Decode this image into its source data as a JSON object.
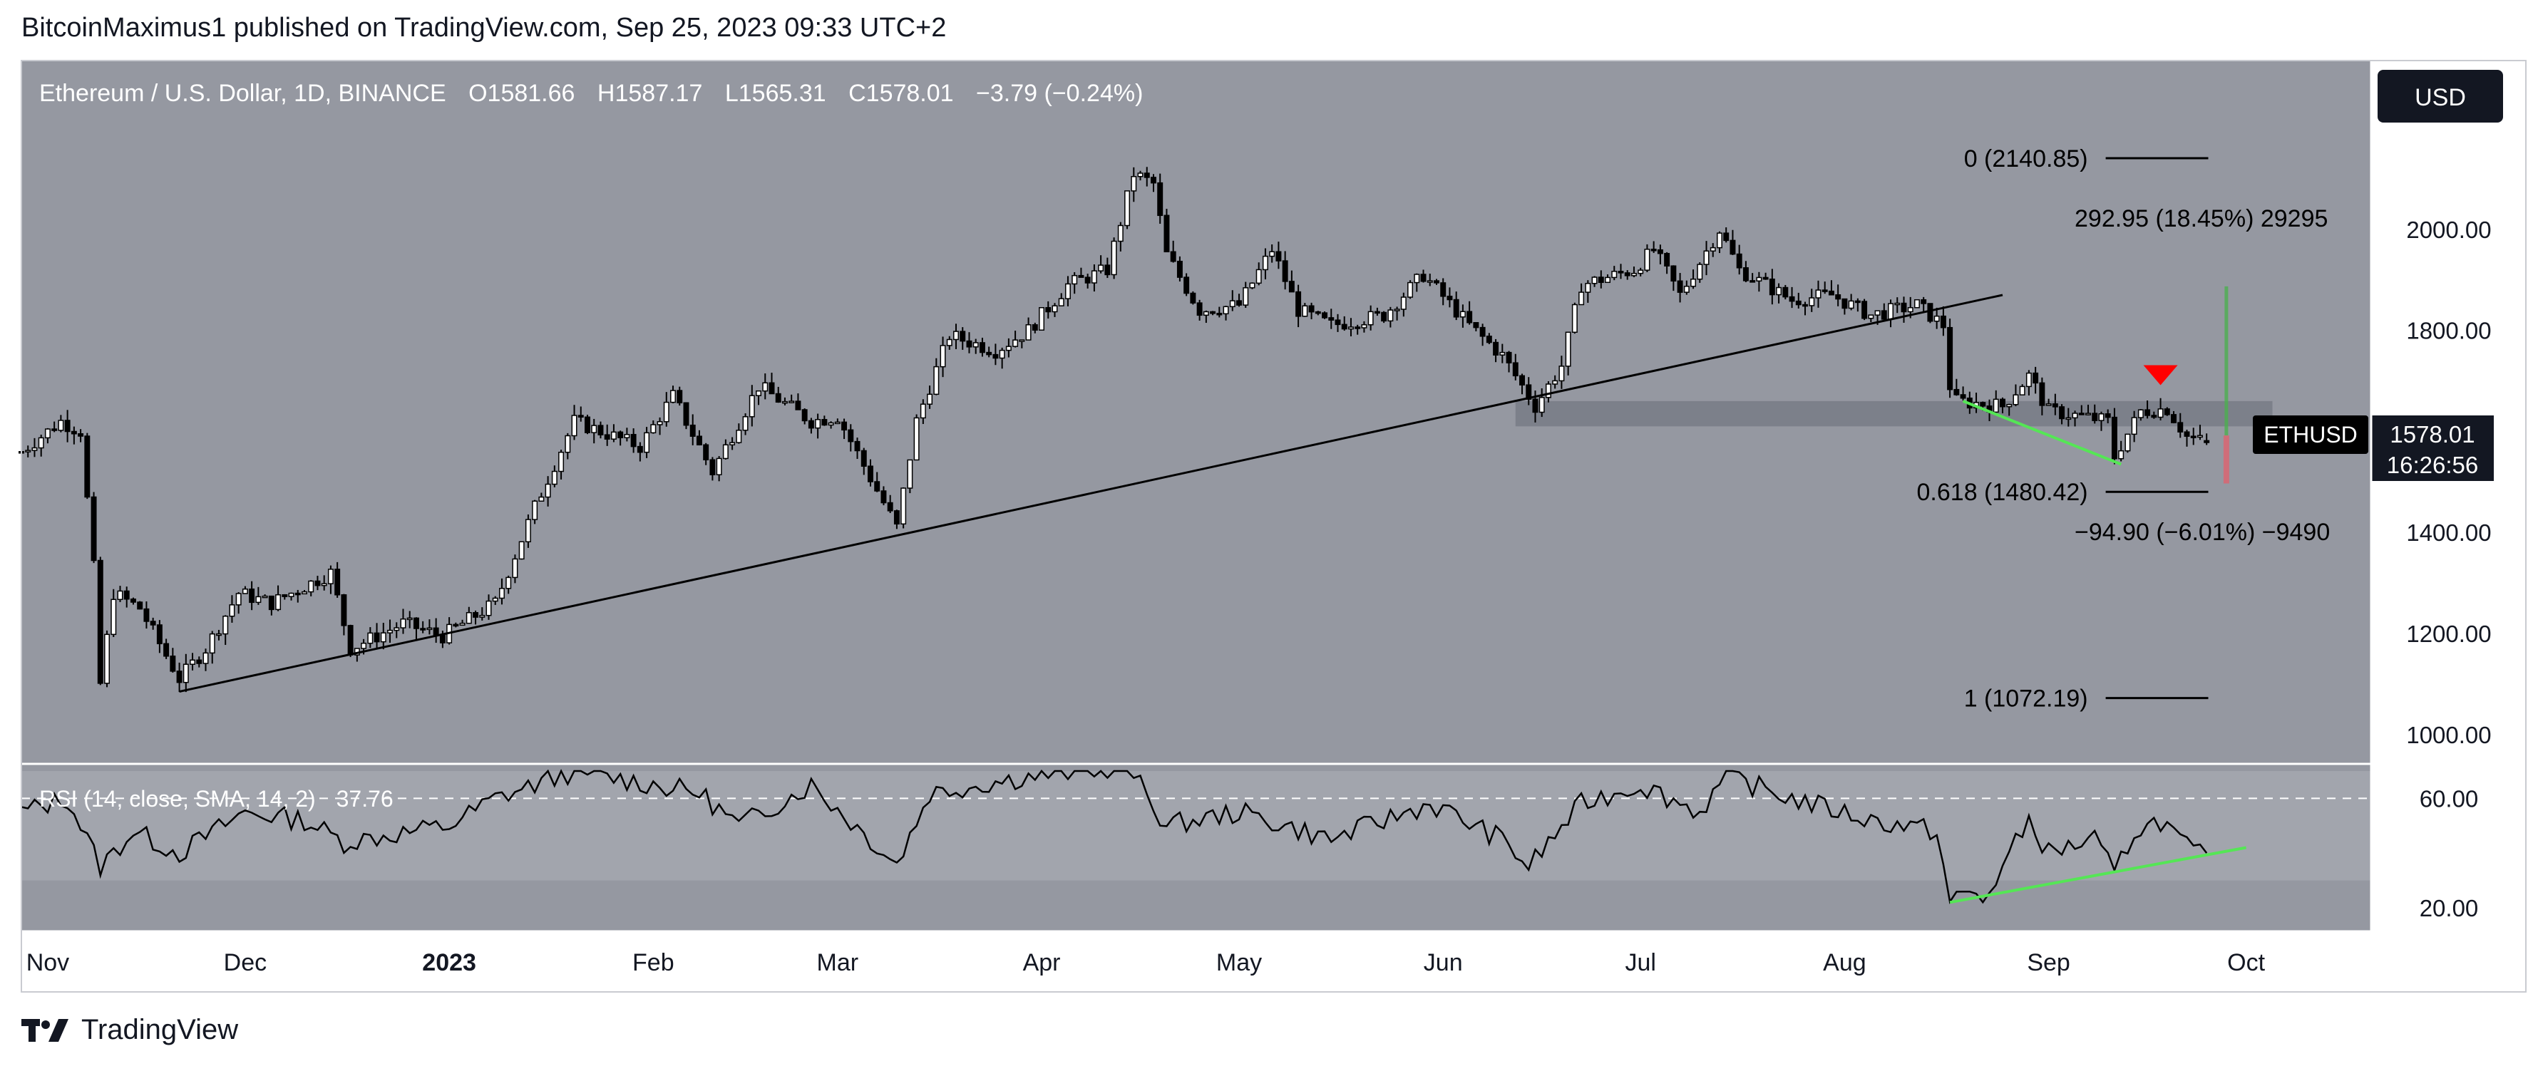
{
  "publisher_text": "BitcoinMaximus1 published on TradingView.com, Sep 25, 2023 09:33 UTC+2",
  "brand": {
    "name": "TradingView",
    "logo_icon": "tradingview-logo-icon"
  },
  "colors": {
    "pane_bg": "#9598a1",
    "candle_up": "#ffffff",
    "candle_down": "#000000",
    "trendline": "#000000",
    "green_line": "#55e655",
    "support_zone": "#787b86",
    "red_marker": "#ff0000",
    "rsi_line": "#000000",
    "price_tag_bg": "#000000"
  },
  "chart_data": {
    "type": "candlestick",
    "title": "Ethereum / U.S. Dollar, 1D, BINANCE",
    "ohlc": {
      "o_label": "O",
      "o": "1581.66",
      "h_label": "H",
      "h": "1587.17",
      "l_label": "L",
      "l": "1565.31",
      "c_label": "C",
      "c": "1578.01",
      "change": "−3.79 (−0.24%)"
    },
    "currency_button": "USD",
    "symbol_tag": "ETHUSD",
    "last_price": "1578.01",
    "countdown": "16:26:56",
    "y_ticks": [
      "2000.00",
      "1800.00",
      "1400.00",
      "1200.00",
      "1000.00"
    ],
    "y_tick_values": [
      2000,
      1800,
      1400,
      1200,
      1000
    ],
    "ylim": [
      980,
      2200
    ],
    "x_ticks": [
      {
        "label": "Nov",
        "date": "2022-11-01",
        "bold": false
      },
      {
        "label": "Dec",
        "date": "2022-12-01",
        "bold": false
      },
      {
        "label": "2023",
        "date": "2023-01-01",
        "bold": true
      },
      {
        "label": "Feb",
        "date": "2023-02-01",
        "bold": false
      },
      {
        "label": "Mar",
        "date": "2023-03-01",
        "bold": false
      },
      {
        "label": "Apr",
        "date": "2023-04-01",
        "bold": false
      },
      {
        "label": "May",
        "date": "2023-05-01",
        "bold": false
      },
      {
        "label": "Jun",
        "date": "2023-06-01",
        "bold": false
      },
      {
        "label": "Jul",
        "date": "2023-07-01",
        "bold": false
      },
      {
        "label": "Aug",
        "date": "2023-08-01",
        "bold": false
      },
      {
        "label": "Sep",
        "date": "2023-09-01",
        "bold": false
      },
      {
        "label": "Oct",
        "date": "2023-10-01",
        "bold": false
      }
    ],
    "xlim": [
      "2022-10-28",
      "2023-10-20"
    ],
    "price_path": [
      [
        "2022-10-28",
        1560
      ],
      [
        "2022-11-03",
        1620
      ],
      [
        "2022-11-06",
        1600
      ],
      [
        "2022-11-08",
        1330
      ],
      [
        "2022-11-09",
        1100
      ],
      [
        "2022-11-11",
        1280
      ],
      [
        "2022-11-15",
        1250
      ],
      [
        "2022-11-21",
        1110
      ],
      [
        "2022-11-25",
        1170
      ],
      [
        "2022-11-30",
        1280
      ],
      [
        "2022-12-05",
        1260
      ],
      [
        "2022-12-14",
        1320
      ],
      [
        "2022-12-17",
        1170
      ],
      [
        "2022-12-25",
        1220
      ],
      [
        "2022-12-31",
        1195
      ],
      [
        "2023-01-08",
        1260
      ],
      [
        "2023-01-14",
        1450
      ],
      [
        "2023-01-20",
        1620
      ],
      [
        "2023-01-30",
        1570
      ],
      [
        "2023-02-04",
        1670
      ],
      [
        "2023-02-10",
        1520
      ],
      [
        "2023-02-17",
        1690
      ],
      [
        "2023-02-25",
        1620
      ],
      [
        "2023-03-01",
        1630
      ],
      [
        "2023-03-10",
        1410
      ],
      [
        "2023-03-13",
        1620
      ],
      [
        "2023-03-18",
        1790
      ],
      [
        "2023-03-25",
        1760
      ],
      [
        "2023-03-30",
        1800
      ],
      [
        "2023-04-05",
        1890
      ],
      [
        "2023-04-11",
        1920
      ],
      [
        "2023-04-15",
        2110
      ],
      [
        "2023-04-18",
        2090
      ],
      [
        "2023-04-20",
        1950
      ],
      [
        "2023-04-25",
        1840
      ],
      [
        "2023-05-01",
        1850
      ],
      [
        "2023-05-06",
        1960
      ],
      [
        "2023-05-10",
        1840
      ],
      [
        "2023-05-15",
        1810
      ],
      [
        "2023-05-23",
        1830
      ],
      [
        "2023-05-29",
        1910
      ],
      [
        "2023-06-05",
        1810
      ],
      [
        "2023-06-10",
        1750
      ],
      [
        "2023-06-15",
        1650
      ],
      [
        "2023-06-19",
        1730
      ],
      [
        "2023-06-22",
        1890
      ],
      [
        "2023-06-30",
        1920
      ],
      [
        "2023-07-03",
        1960
      ],
      [
        "2023-07-07",
        1870
      ],
      [
        "2023-07-13",
        2000
      ],
      [
        "2023-07-16",
        1920
      ],
      [
        "2023-07-24",
        1860
      ],
      [
        "2023-07-30",
        1870
      ],
      [
        "2023-08-05",
        1830
      ],
      [
        "2023-08-12",
        1850
      ],
      [
        "2023-08-16",
        1810
      ],
      [
        "2023-08-17",
        1690
      ],
      [
        "2023-08-18",
        1660
      ],
      [
        "2023-08-25",
        1650
      ],
      [
        "2023-08-29",
        1710
      ],
      [
        "2023-09-01",
        1640
      ],
      [
        "2023-09-06",
        1630
      ],
      [
        "2023-09-10",
        1620
      ],
      [
        "2023-09-11",
        1550
      ],
      [
        "2023-09-15",
        1640
      ],
      [
        "2023-09-19",
        1645
      ],
      [
        "2023-09-22",
        1590
      ],
      [
        "2023-09-25",
        1578
      ]
    ],
    "drawings": {
      "trendline": [
        [
          "2022-11-21",
          1085
        ],
        [
          "2023-08-25",
          1870
        ]
      ],
      "green_price_line": [
        [
          "2023-08-19",
          1660
        ],
        [
          "2023-09-12",
          1535
        ]
      ],
      "support_zone": {
        "start": "2023-06-12",
        "end": "2023-10-05",
        "low": 1610,
        "high": 1660
      },
      "red_marker": {
        "date": "2023-09-18",
        "price": 1700
      },
      "long_position": {
        "date": "2023-09-28",
        "top": 1887,
        "entry": 1592,
        "bottom": 1497
      }
    },
    "fib_levels": [
      {
        "label": "0 (2140.85)",
        "value": 2140.85
      },
      {
        "label": "0.618 (1480.42)",
        "value": 1480.42
      },
      {
        "label": "1 (1072.19)",
        "value": 1072.19
      }
    ],
    "fib_range": [
      "2023-09-01",
      "2023-10-05"
    ],
    "position_upper_label": "292.95 (18.45%) 29295",
    "position_lower_label": "−94.90 (−6.01%) −9490",
    "rsi": {
      "label": "RSI (14, close, SMA, 14, 2)",
      "value_label": "37.76",
      "y_ticks": [
        "60.00",
        "20.00"
      ],
      "y_tick_values": [
        60,
        20
      ],
      "ylim": [
        14,
        70
      ],
      "band": [
        30,
        70
      ],
      "dashed_level": 60,
      "path": [
        [
          "2022-10-28",
          55
        ],
        [
          "2022-11-04",
          60
        ],
        [
          "2022-11-09",
          35
        ],
        [
          "2022-11-14",
          48
        ],
        [
          "2022-11-21",
          40
        ],
        [
          "2022-12-01",
          55
        ],
        [
          "2022-12-10",
          52
        ],
        [
          "2022-12-16",
          44
        ],
        [
          "2023-01-01",
          50
        ],
        [
          "2023-01-08",
          60
        ],
        [
          "2023-01-20",
          70
        ],
        [
          "2023-02-08",
          62
        ],
        [
          "2023-02-14",
          50
        ],
        [
          "2023-02-25",
          65
        ],
        [
          "2023-03-10",
          36
        ],
        [
          "2023-03-15",
          62
        ],
        [
          "2023-03-30",
          68
        ],
        [
          "2023-04-14",
          72
        ],
        [
          "2023-04-20",
          50
        ],
        [
          "2023-05-01",
          55
        ],
        [
          "2023-05-15",
          45
        ],
        [
          "2023-05-30",
          58
        ],
        [
          "2023-06-10",
          45
        ],
        [
          "2023-06-14",
          35
        ],
        [
          "2023-06-22",
          58
        ],
        [
          "2023-07-01",
          65
        ],
        [
          "2023-07-10",
          55
        ],
        [
          "2023-07-14",
          68
        ],
        [
          "2023-07-24",
          60
        ],
        [
          "2023-08-05",
          52
        ],
        [
          "2023-08-15",
          48
        ],
        [
          "2023-08-17",
          22
        ],
        [
          "2023-08-20",
          26
        ],
        [
          "2023-08-22",
          22
        ],
        [
          "2023-08-29",
          52
        ],
        [
          "2023-09-01",
          40
        ],
        [
          "2023-09-08",
          45
        ],
        [
          "2023-09-11",
          32
        ],
        [
          "2023-09-14",
          48
        ],
        [
          "2023-09-18",
          52
        ],
        [
          "2023-09-22",
          42
        ],
        [
          "2023-09-25",
          38
        ]
      ],
      "green_divergence": [
        [
          "2023-08-17",
          22
        ],
        [
          "2023-10-01",
          42
        ]
      ]
    }
  }
}
